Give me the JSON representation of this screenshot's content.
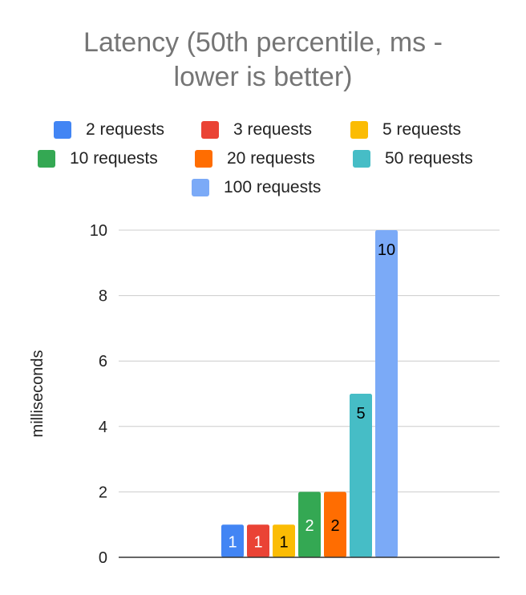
{
  "chart_data": {
    "type": "bar",
    "title_lines": [
      "Latency (50th percentile, ms -",
      "lower is better)"
    ],
    "ylabel": "milliseconds",
    "xlabel": "",
    "ylim": [
      0,
      10
    ],
    "yticks": [
      0,
      2,
      4,
      6,
      8,
      10
    ],
    "grid": true,
    "legend_position": "top",
    "series": [
      {
        "name": "2 requests",
        "value": 1,
        "label": "1",
        "color": "#4285F4",
        "label_color": "#ffffff"
      },
      {
        "name": "3 requests",
        "value": 1,
        "label": "1",
        "color": "#EA4335",
        "label_color": "#ffffff"
      },
      {
        "name": "5 requests",
        "value": 1,
        "label": "1",
        "color": "#FBBC04",
        "label_color": "#000000"
      },
      {
        "name": "10 requests",
        "value": 2,
        "label": "2",
        "color": "#34A853",
        "label_color": "#ffffff"
      },
      {
        "name": "20 requests",
        "value": 2,
        "label": "2",
        "color": "#FF6D01",
        "label_color": "#000000"
      },
      {
        "name": "50 requests",
        "value": 5,
        "label": "5",
        "color": "#46BDC6",
        "label_color": "#000000"
      },
      {
        "name": "100 requests",
        "value": 10,
        "label": "10",
        "color": "#7BAAF7",
        "label_color": "#000000"
      }
    ]
  }
}
